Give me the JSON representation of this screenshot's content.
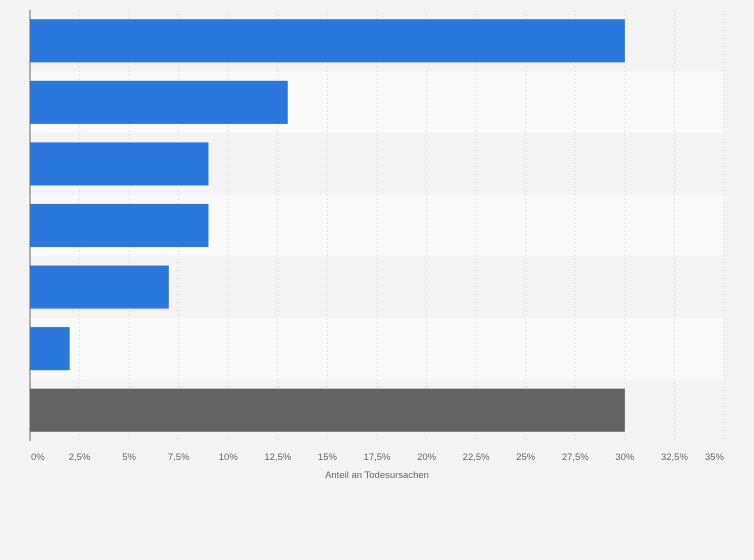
{
  "chart_data": {
    "type": "bar",
    "orientation": "horizontal",
    "categories": [
      "",
      "",
      "",
      "",
      "",
      "",
      ""
    ],
    "values": [
      30,
      13,
      9,
      9,
      7,
      2,
      30
    ],
    "bar_colors": [
      "#2a77dd",
      "#2a77dd",
      "#2a77dd",
      "#2a77dd",
      "#2a77dd",
      "#2a77dd",
      "#636363"
    ],
    "xlabel": "Anteil an Todesursachen",
    "ylabel": "",
    "xlim": [
      0,
      35
    ],
    "x_ticks": [
      0,
      2.5,
      5,
      7.5,
      10,
      12.5,
      15,
      17.5,
      20,
      22.5,
      25,
      27.5,
      30,
      32.5,
      35
    ],
    "x_tick_labels": [
      "0%",
      "2,5%",
      "5%",
      "7,5%",
      "10%",
      "12,5%",
      "15%",
      "17,5%",
      "20%",
      "22,5%",
      "25%",
      "27,5%",
      "30%",
      "32,5%",
      "35%"
    ],
    "grid": true,
    "legend": "none"
  }
}
